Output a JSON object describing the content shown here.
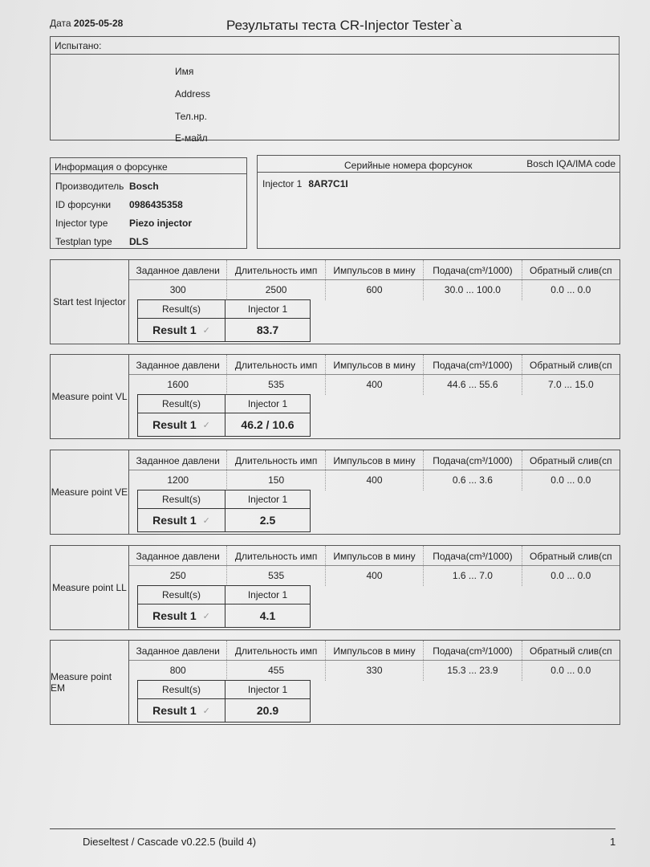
{
  "header": {
    "date_label": "Дата",
    "date": "2025-05-28",
    "title": "Результаты теста CR-Injector Tester`a"
  },
  "tested": {
    "label": "Испытано:",
    "fields": [
      "Имя",
      "Address",
      "Тел.нр.",
      "E-майл"
    ]
  },
  "injector_info": {
    "title": "Информация о форсунке",
    "rows": [
      {
        "key": "Производитель",
        "value": "Bosch"
      },
      {
        "key": "ID форсунки",
        "value": "0986435358"
      },
      {
        "key": "Injector type",
        "value": "Piezo injector"
      },
      {
        "key": "Testplan type",
        "value": "DLS"
      }
    ]
  },
  "serials": {
    "title": "Серийные номера форсунок",
    "code_title": "Bosch IQA/IMA code",
    "injector": "Injector 1",
    "code": "8AR7C1I"
  },
  "columns": [
    "Заданное давлени",
    "Длительность имп",
    "Импульсов в мину",
    "Подача(cm³/1000)",
    "Обратный слив(сп"
  ],
  "result_headers": {
    "results": "Result(s)",
    "injector": "Injector 1",
    "result_label": "Result 1",
    "check_icon": "checkmark-icon"
  },
  "tests": [
    {
      "name": "Start test Injector",
      "values": [
        "300",
        "2500",
        "600",
        "30.0 ... 100.0",
        "0.0 ... 0.0"
      ],
      "result": "83.7"
    },
    {
      "name": "Measure point VL",
      "values": [
        "1600",
        "535",
        "400",
        "44.6 ... 55.6",
        "7.0 ... 15.0"
      ],
      "result": "46.2  /  10.6"
    },
    {
      "name": "Measure point VE",
      "values": [
        "1200",
        "150",
        "400",
        "0.6 ... 3.6",
        "0.0 ... 0.0"
      ],
      "result": "2.5"
    },
    {
      "name": "Measure point LL",
      "values": [
        "250",
        "535",
        "400",
        "1.6 ... 7.0",
        "0.0 ... 0.0"
      ],
      "result": "4.1"
    },
    {
      "name": "Measure point EM",
      "values": [
        "800",
        "455",
        "330",
        "15.3 ... 23.9",
        "0.0 ... 0.0"
      ],
      "result": "20.9"
    }
  ],
  "footer": {
    "software": "Dieseltest / Cascade v0.22.5 (build 4)",
    "page": "1"
  }
}
